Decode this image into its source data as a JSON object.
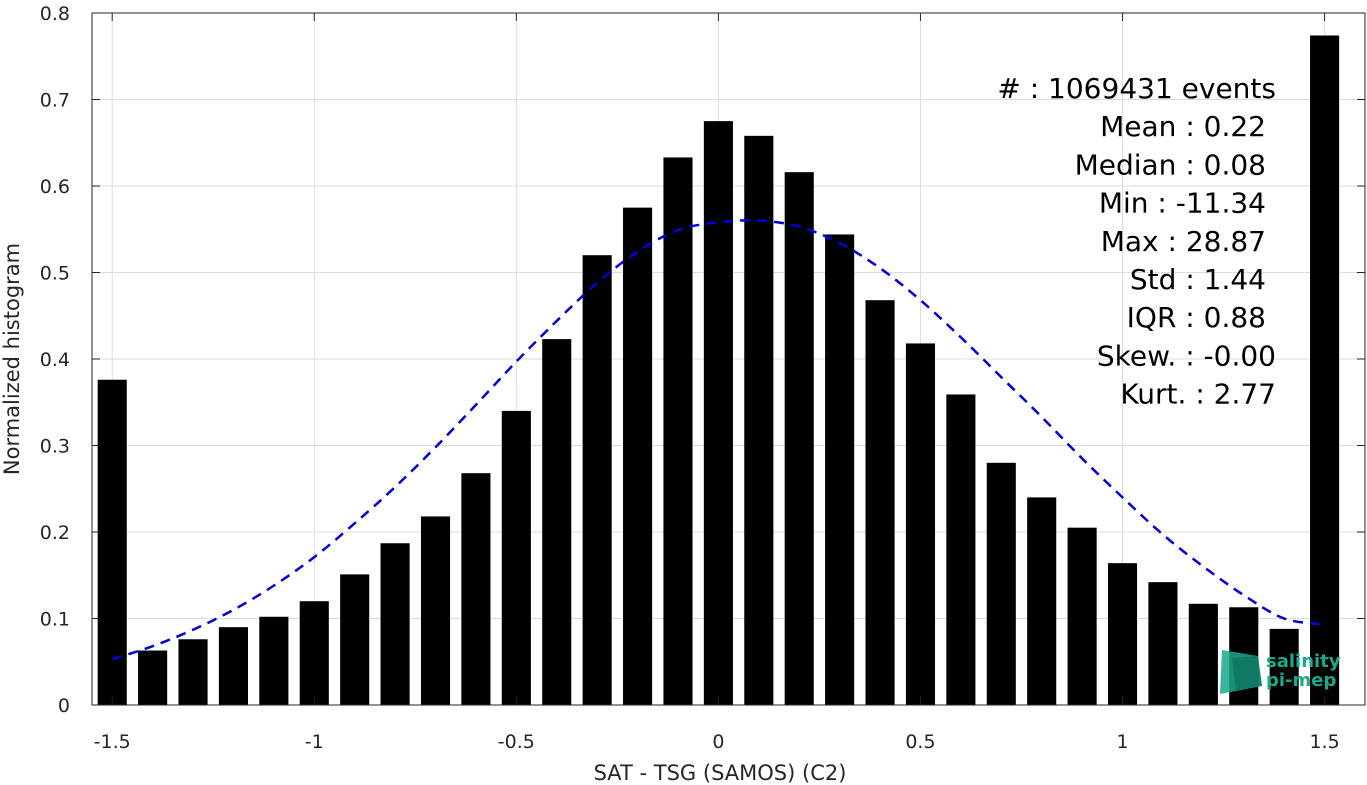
{
  "chart_data": {
    "type": "bar",
    "xlabel": "SAT - TSG (SAMOS) (C2)",
    "ylabel": "Normalized histogram",
    "xlim": [
      -1.55,
      1.6
    ],
    "ylim": [
      0,
      0.8
    ],
    "x_ticks": [
      -1.5,
      -1,
      -0.5,
      0,
      0.5,
      1,
      1.5
    ],
    "x_tick_labels": [
      "-1.5",
      "-1",
      "-0.5",
      "0",
      "0.5",
      "1",
      "1.5"
    ],
    "y_ticks": [
      0,
      0.1,
      0.2,
      0.3,
      0.4,
      0.5,
      0.6,
      0.7,
      0.8
    ],
    "y_tick_labels": [
      "0",
      "0.1",
      "0.2",
      "0.3",
      "0.4",
      "0.5",
      "0.6",
      "0.7",
      "0.8"
    ],
    "grid": true,
    "bar_color": "#000000",
    "fit_color": "#0000dd",
    "bin_width": 0.1,
    "x": [
      -1.5,
      -1.4,
      -1.3,
      -1.2,
      -1.1,
      -1.0,
      -0.9,
      -0.8,
      -0.7,
      -0.6,
      -0.5,
      -0.4,
      -0.3,
      -0.2,
      -0.1,
      0.0,
      0.1,
      0.2,
      0.3,
      0.4,
      0.5,
      0.6,
      0.7,
      0.8,
      0.9,
      1.0,
      1.1,
      1.2,
      1.3,
      1.4,
      1.5
    ],
    "values": [
      0.376,
      0.063,
      0.076,
      0.09,
      0.102,
      0.12,
      0.151,
      0.187,
      0.218,
      0.268,
      0.34,
      0.423,
      0.52,
      0.575,
      0.633,
      0.675,
      0.658,
      0.616,
      0.544,
      0.468,
      0.418,
      0.359,
      0.28,
      0.24,
      0.205,
      0.164,
      0.142,
      0.117,
      0.113,
      0.088,
      0.774
    ],
    "fit_curve": {
      "style": "dashed",
      "x": [
        -1.5,
        -1.4,
        -1.3,
        -1.2,
        -1.1,
        -1.0,
        -0.9,
        -0.8,
        -0.7,
        -0.6,
        -0.5,
        -0.4,
        -0.3,
        -0.2,
        -0.1,
        0.0,
        0.1,
        0.2,
        0.3,
        0.4,
        0.5,
        0.6,
        0.7,
        0.8,
        0.9,
        1.0,
        1.1,
        1.2,
        1.3,
        1.4,
        1.5
      ],
      "y": [
        0.053,
        0.068,
        0.087,
        0.11,
        0.138,
        0.171,
        0.21,
        0.252,
        0.298,
        0.347,
        0.397,
        0.444,
        0.488,
        0.524,
        0.549,
        0.558,
        0.56,
        0.553,
        0.534,
        0.505,
        0.468,
        0.425,
        0.379,
        0.333,
        0.285,
        0.24,
        0.197,
        0.16,
        0.127,
        0.1,
        0.093
      ]
    },
    "stats_lines": [
      "#  : 1069431 events",
      "Mean : 0.22",
      "Median : 0.08",
      "Min : -11.34",
      "Max : 28.87",
      "Std : 1.44",
      "IQR : 0.88",
      "Skew. : -0.00",
      "Kurt. : 2.77"
    ],
    "logo_lines": [
      "salinity",
      "pi-mep"
    ]
  }
}
